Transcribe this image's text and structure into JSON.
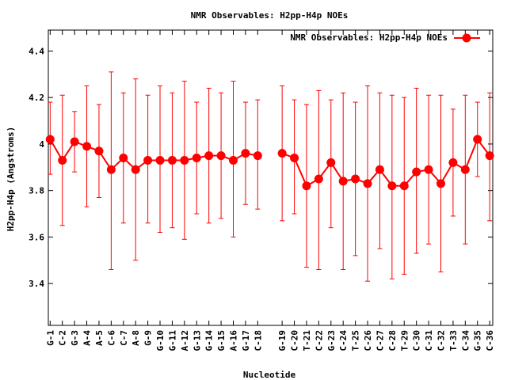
{
  "chart_data": {
    "type": "line",
    "title": "NMR Observables: H2pp-H4p NOEs",
    "xlabel": "Nucleotide",
    "ylabel": "H2pp-H4p (Angstroms)",
    "ylim": [
      3.22,
      4.49
    ],
    "yticks": [
      3.4,
      3.6,
      3.8,
      4,
      4.2,
      4.4
    ],
    "ytick_labels": [
      "3.4",
      "3.6",
      "3.8",
      "4",
      "4.2",
      "4.4"
    ],
    "legend_position": "top-right",
    "grid": false,
    "categories": [
      "G-1",
      "C-2",
      "G-3",
      "A-4",
      "A-5",
      "C-6",
      "C-7",
      "A-8",
      "G-9",
      "G-10",
      "G-11",
      "A-12",
      "G-13",
      "G-14",
      "G-15",
      "A-16",
      "G-17",
      "C-18",
      "G-19",
      "C-20",
      "T-21",
      "C-22",
      "G-23",
      "C-24",
      "T-25",
      "C-26",
      "C-27",
      "C-28",
      "T-29",
      "C-30",
      "C-31",
      "C-32",
      "T-33",
      "C-34",
      "G-35",
      "C-36"
    ],
    "x_positions": [
      1,
      2,
      3,
      4,
      5,
      6,
      7,
      8,
      9,
      10,
      11,
      12,
      13,
      14,
      15,
      16,
      17,
      18,
      20,
      21,
      22,
      23,
      24,
      25,
      26,
      27,
      28,
      29,
      30,
      31,
      32,
      33,
      34,
      35,
      36,
      37
    ],
    "xlim": [
      0.85,
      37.25
    ],
    "series": [
      {
        "name": "NMR Observables: H2pp-H4p NOEs",
        "color": "#ff0000",
        "values": [
          4.02,
          3.93,
          4.01,
          3.99,
          3.97,
          3.89,
          3.94,
          3.89,
          3.93,
          3.93,
          3.93,
          3.93,
          3.94,
          3.95,
          3.95,
          3.93,
          3.96,
          3.95,
          3.96,
          3.94,
          3.82,
          3.85,
          3.92,
          3.84,
          3.85,
          3.83,
          3.89,
          3.82,
          3.82,
          3.88,
          3.89,
          3.83,
          3.92,
          3.89,
          4.02,
          3.95
        ],
        "err_low": [
          3.87,
          3.65,
          3.88,
          3.73,
          3.77,
          3.46,
          3.66,
          3.5,
          3.66,
          3.62,
          3.64,
          3.59,
          3.7,
          3.66,
          3.68,
          3.6,
          3.74,
          3.72,
          3.67,
          3.7,
          3.47,
          3.46,
          3.64,
          3.46,
          3.52,
          3.41,
          3.55,
          3.42,
          3.44,
          3.53,
          3.57,
          3.45,
          3.69,
          3.57,
          3.86,
          3.67
        ],
        "err_high": [
          4.18,
          4.21,
          4.14,
          4.25,
          4.17,
          4.31,
          4.22,
          4.28,
          4.21,
          4.25,
          4.22,
          4.27,
          4.18,
          4.24,
          4.22,
          4.27,
          4.18,
          4.19,
          4.25,
          4.19,
          4.17,
          4.23,
          4.19,
          4.22,
          4.18,
          4.25,
          4.22,
          4.21,
          4.2,
          4.24,
          4.21,
          4.21,
          4.15,
          4.21,
          4.18,
          4.22
        ]
      }
    ]
  }
}
